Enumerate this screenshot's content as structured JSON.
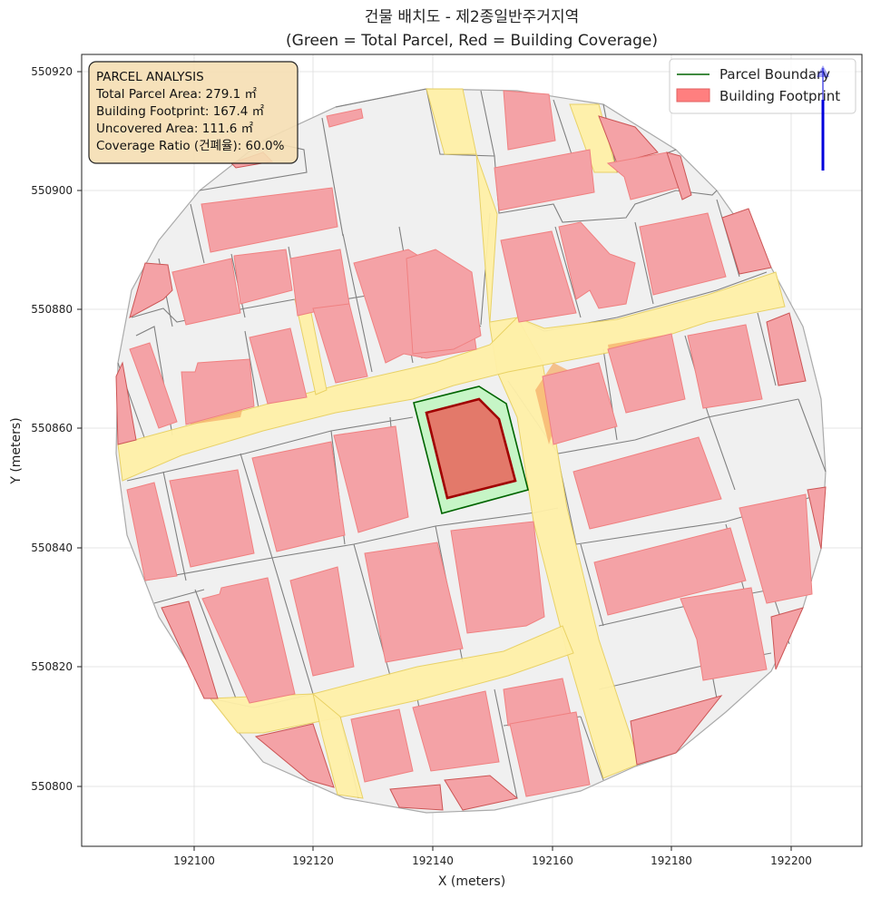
{
  "figure": {
    "title_line1": "건물 배치도 - 제2종일반주거지역",
    "title_line2": "(Green = Total Parcel, Red = Building Coverage)",
    "xlabel": "X (meters)",
    "ylabel": "Y (meters)"
  },
  "axes": {
    "x_ticks": [
      "192100",
      "192120",
      "192140",
      "192160",
      "192180",
      "192200"
    ],
    "y_ticks": [
      "550920",
      "550900",
      "550880",
      "550860",
      "550840",
      "550820",
      "550800"
    ]
  },
  "info_box": {
    "heading": "PARCEL ANALYSIS",
    "total_area": "Total Parcel Area: 279.1 ㎡",
    "footprint": "Building Footprint: 167.4 ㎡",
    "uncovered": "Uncovered Area: 111.6 ㎡",
    "coverage": "Coverage Ratio (건폐율): 60.0%"
  },
  "legend": {
    "parcel_boundary": "Parcel Boundary",
    "building_footprint": "Building Footprint",
    "parcel_color": "#006400",
    "building_color": "#ff7f7f"
  },
  "colors": {
    "target_parcel_fill": "#c6f5c6",
    "target_building_fill": "#e3796a",
    "target_building_edge": "#a00000",
    "road_fill": "#fff0a8",
    "north_arrow": "#0000dd"
  }
}
